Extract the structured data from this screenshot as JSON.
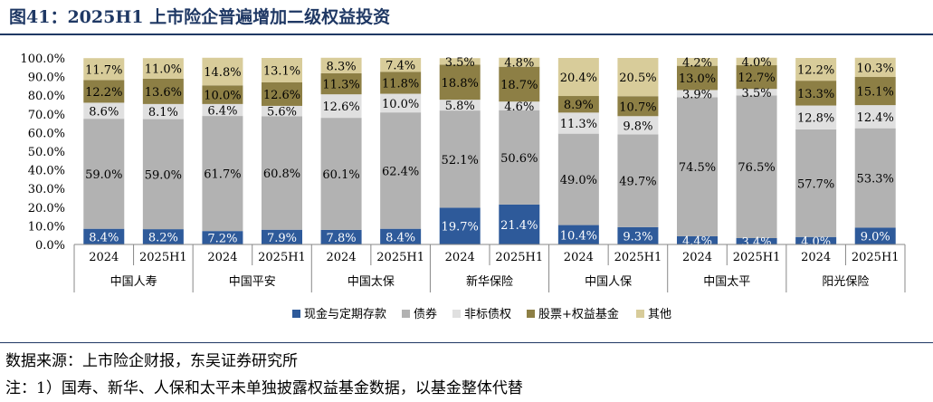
{
  "header": {
    "title": "图41：2025H1 上市险企普遍增加二级权益投资"
  },
  "footer": {
    "source": "数据来源：上市险企财报，东吴证券研究所",
    "note": "注：1）国寿、新华、人保和太平未单独披露权益基金数据，以基金整体代替"
  },
  "colors": {
    "现金与定期存款": "#2e5a9a",
    "债券": "#b2b2b2",
    "非标债权": "#e0e0e0",
    "股票+权益基金": "#8d7f45",
    "其他": "#d8cc9a"
  },
  "chart_data": {
    "type": "bar",
    "stacked": true,
    "ylim": [
      0,
      100
    ],
    "yticks": [
      "0.0%",
      "10.0%",
      "20.0%",
      "30.0%",
      "40.0%",
      "50.0%",
      "60.0%",
      "70.0%",
      "80.0%",
      "90.0%",
      "100.0%"
    ],
    "groups": [
      "中国人寿",
      "中国平安",
      "中国太保",
      "新华保险",
      "中国人保",
      "中国太平",
      "阳光保险"
    ],
    "categories": [
      "2024",
      "2025H1",
      "2024",
      "2025H1",
      "2024",
      "2025H1",
      "2024",
      "2025H1",
      "2024",
      "2025H1",
      "2024",
      "2025H1",
      "2024",
      "2025H1"
    ],
    "legend_position": "bottom",
    "series": [
      {
        "name": "现金与定期存款",
        "values": [
          8.4,
          8.2,
          7.2,
          7.9,
          7.8,
          8.4,
          19.7,
          21.4,
          10.4,
          9.3,
          4.4,
          3.4,
          4.0,
          9.0
        ],
        "labels": [
          "8.4%",
          "8.2%",
          "7.2%",
          "7.9%",
          "7.8%",
          "8.4%",
          "19.7%",
          "21.4%",
          "10.4%",
          "9.3%",
          "4.4%",
          "3.4%",
          "4.0%",
          "9.0%"
        ]
      },
      {
        "name": "债券",
        "values": [
          59.0,
          59.0,
          61.7,
          60.8,
          60.1,
          62.4,
          52.1,
          50.6,
          49.0,
          49.7,
          74.5,
          76.5,
          57.7,
          53.3
        ],
        "labels": [
          "59.0%",
          "59.0%",
          "61.7%",
          "60.8%",
          "60.1%",
          "62.4%",
          "52.1%",
          "50.6%",
          "49.0%",
          "49.7%",
          "74.5%",
          "76.5%",
          "57.7%",
          "53.3%"
        ]
      },
      {
        "name": "非标债权",
        "values": [
          8.6,
          8.1,
          6.4,
          5.6,
          12.6,
          10.0,
          5.8,
          4.6,
          11.3,
          9.8,
          3.9,
          3.5,
          12.8,
          12.4
        ],
        "labels": [
          "8.6%",
          "8.1%",
          "6.4%",
          "5.6%",
          "12.6%",
          "10.0%",
          "5.8%",
          "4.6%",
          "11.3%",
          "9.8%",
          "3.9%",
          "3.5%",
          "12.8%",
          "12.4%"
        ]
      },
      {
        "name": "股票+权益基金",
        "values": [
          12.2,
          13.6,
          10.0,
          12.6,
          11.3,
          11.8,
          18.8,
          18.7,
          8.9,
          10.7,
          13.0,
          12.7,
          13.3,
          15.1
        ],
        "labels": [
          "12.2%",
          "13.6%",
          "10.0%",
          "12.6%",
          "11.3%",
          "11.8%",
          "18.8%",
          "18.7%",
          "8.9%",
          "10.7%",
          "13.0%",
          "12.7%",
          "13.3%",
          "15.1%"
        ]
      },
      {
        "name": "其他",
        "values": [
          11.7,
          11.0,
          14.8,
          13.1,
          8.3,
          7.4,
          3.5,
          4.8,
          20.4,
          20.5,
          4.2,
          4.0,
          12.2,
          10.3
        ],
        "labels": [
          "11.7%",
          "11.0%",
          "14.8%",
          "13.1%",
          "8.3%",
          "7.4%",
          "3.5%",
          "4.8%",
          "20.4%",
          "20.5%",
          "4.2%",
          "4.0%",
          "12.2%",
          "10.3%"
        ]
      }
    ]
  }
}
